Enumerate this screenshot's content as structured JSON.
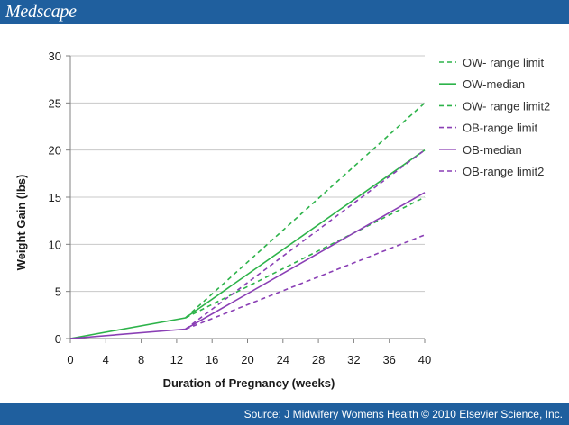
{
  "header": {
    "brand": "Medscape"
  },
  "footer": {
    "source": "Source: J Midwifery Womens Health © 2010 Elsevier Science, Inc."
  },
  "colors": {
    "header_bg": "#1f5f9e",
    "ow": "#2db34a",
    "ob": "#8a3fb5",
    "grid": "#c8c8c8",
    "axis": "#808080"
  },
  "chart_data": {
    "type": "line",
    "xlabel": "Duration of Pregnancy (weeks)",
    "ylabel": "Weight Gain (lbs)",
    "xlim": [
      0,
      40
    ],
    "ylim": [
      0,
      30
    ],
    "xticks": [
      0,
      4,
      8,
      12,
      16,
      20,
      24,
      28,
      32,
      36,
      40
    ],
    "yticks": [
      0,
      5,
      10,
      15,
      20,
      25,
      30
    ],
    "grid": "horizontal",
    "legend_position": "right",
    "series": [
      {
        "name": "OW- range limit",
        "color": "#2db34a",
        "style": "dashed",
        "x": [
          13,
          40
        ],
        "y": [
          2.2,
          25
        ]
      },
      {
        "name": "OW-median",
        "color": "#2db34a",
        "style": "solid",
        "x": [
          0,
          13,
          40
        ],
        "y": [
          0,
          2.2,
          20
        ]
      },
      {
        "name": "OW- range limit2",
        "color": "#2db34a",
        "style": "dashed",
        "x": [
          13,
          40
        ],
        "y": [
          2.2,
          15
        ]
      },
      {
        "name": "OB-range limit",
        "color": "#8a3fb5",
        "style": "dashed",
        "x": [
          13,
          40
        ],
        "y": [
          1,
          20
        ]
      },
      {
        "name": "OB-median",
        "color": "#8a3fb5",
        "style": "solid",
        "x": [
          0,
          13,
          40
        ],
        "y": [
          0,
          1,
          15.5
        ]
      },
      {
        "name": "OB-range limit2",
        "color": "#8a3fb5",
        "style": "dashed",
        "x": [
          13,
          40
        ],
        "y": [
          1,
          11
        ]
      }
    ]
  }
}
